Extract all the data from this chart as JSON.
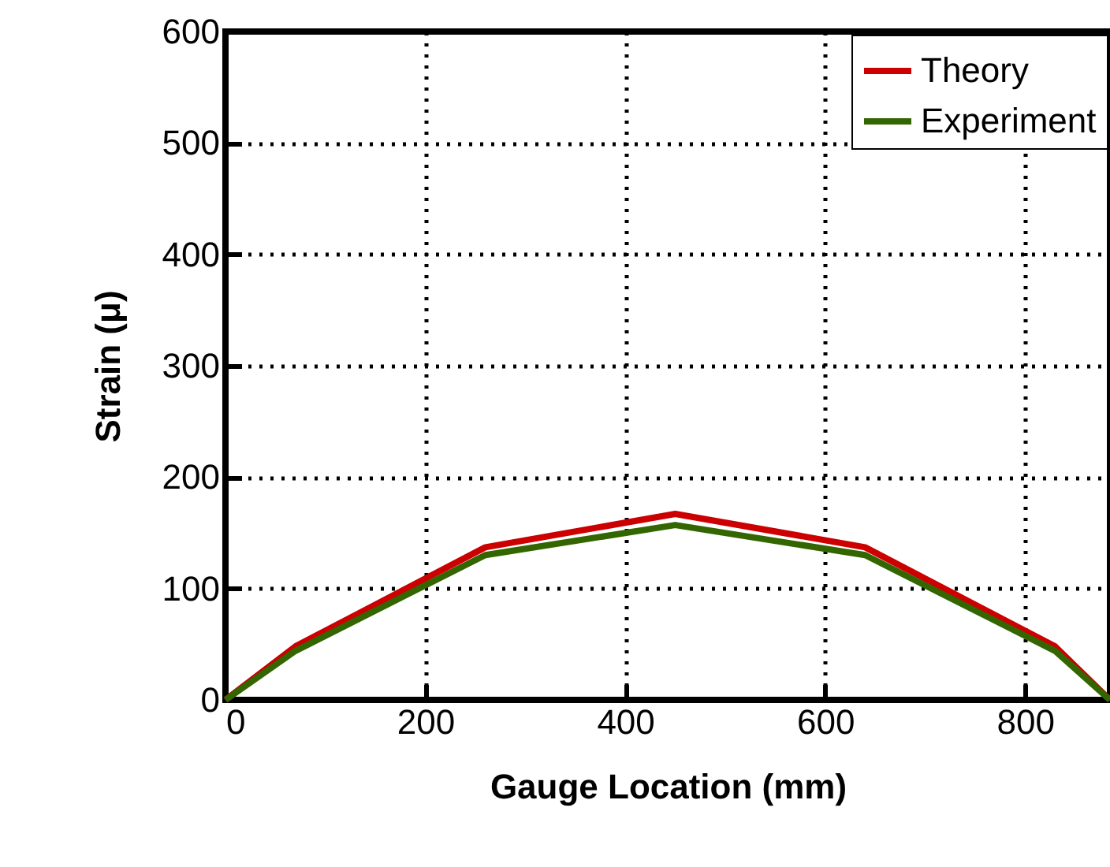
{
  "chart_data": {
    "type": "line",
    "xlabel": "Gauge Location (mm)",
    "ylabel": "Strain (μ)",
    "x": [
      0,
      70,
      260,
      450,
      640,
      830,
      885
    ],
    "series": [
      {
        "name": "Theory",
        "color": "#cc0000",
        "values": [
          0,
          48,
          137,
          167,
          137,
          48,
          0
        ]
      },
      {
        "name": "Experiment",
        "color": "#336600",
        "values": [
          0,
          44,
          130,
          157,
          130,
          44,
          0
        ]
      }
    ],
    "xlim": [
      0,
      885
    ],
    "xticks": [
      0,
      200,
      400,
      600,
      800
    ],
    "ylim": [
      0,
      600
    ],
    "yticks": [
      0,
      100,
      200,
      300,
      400,
      500,
      600
    ],
    "grid": true,
    "legend": "top right",
    "line_style": "solid",
    "marker": "none"
  }
}
